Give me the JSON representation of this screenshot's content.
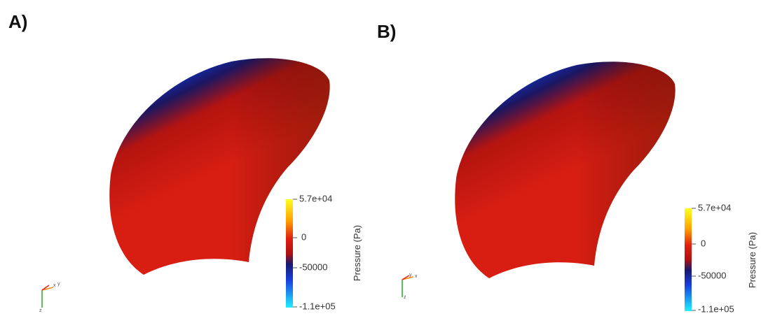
{
  "panels": [
    {
      "label": "A)",
      "colorbar": {
        "title": "Pressure (Pa)",
        "ticks": [
          "5.7e+04",
          "0",
          "-50000",
          "-1.1e+05"
        ]
      },
      "triad": [
        "x",
        "y",
        "z"
      ]
    },
    {
      "label": "B)",
      "colorbar": {
        "title": "Pressure (Pa)",
        "ticks": [
          "5.7e+04",
          "0",
          "-50000",
          "-1.1e+05"
        ]
      },
      "triad": [
        "y",
        "x",
        "z"
      ]
    }
  ]
}
